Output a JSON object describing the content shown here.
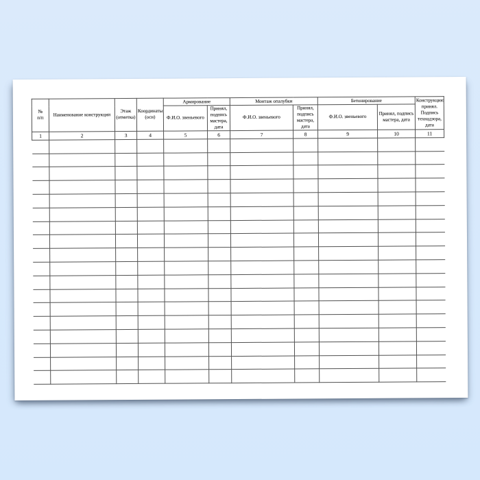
{
  "page": {
    "background_color": "#d7e9fc",
    "paper_color": "#ffffff",
    "line_color": "#4f4f4f",
    "text_color": "#242424"
  },
  "table": {
    "body_rows": 18,
    "columns_count": 11,
    "header": {
      "col1": {
        "label": "№\nп/п",
        "num": "1"
      },
      "col2": {
        "label": "Наименование конструкции",
        "num": "2"
      },
      "col3": {
        "label": "Этаж (отметка)",
        "num": "3"
      },
      "col4": {
        "label": "Координаты (оси)",
        "num": "4"
      },
      "group_armirovanie": {
        "label": "Армирование"
      },
      "col5": {
        "label": "Ф.И.О. звеньевого",
        "num": "5"
      },
      "col6": {
        "label": "Принял, подпись мастера, дата",
        "num": "6"
      },
      "group_montazh": {
        "label": "Монтаж опалубки"
      },
      "col7": {
        "label": "Ф.И.О. звеньевого",
        "num": "7"
      },
      "col8": {
        "label": "Принял, подпись мастера, дата",
        "num": "8"
      },
      "group_betonirovanie": {
        "label": "Бетонирование"
      },
      "col9": {
        "label": "Ф.И.О. звеньевого",
        "num": "9"
      },
      "col10": {
        "label": "Принял, подпись мастера, дата",
        "num": "10"
      },
      "col11": {
        "label": "Конструкцию принял. Подпись технадзора, дата",
        "num": "11"
      }
    }
  }
}
